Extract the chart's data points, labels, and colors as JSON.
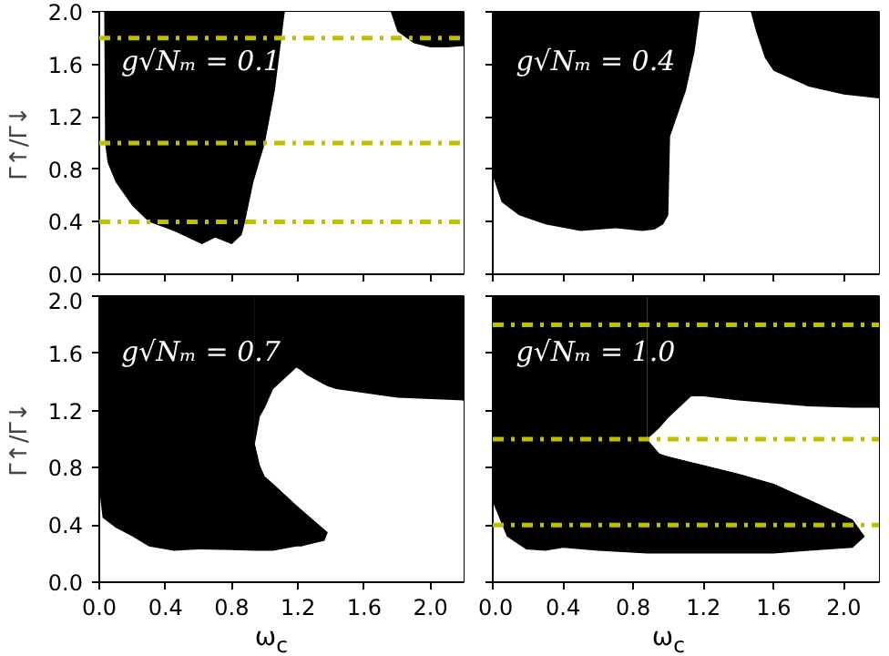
{
  "chart_data": [
    {
      "type": "area",
      "stacked": true,
      "ylabel": "Γ↑/Γ↓",
      "annotations": [
        "g√Nₘ = 0.1"
      ],
      "tick_labels": "y",
      "xlim": [
        0,
        2.2
      ],
      "ylim": [
        0,
        2.0
      ],
      "xticks": [
        0,
        0.4,
        0.8,
        1.2,
        1.6,
        2.0
      ],
      "yticks": [
        {
          "value": 0,
          "label": "0.0"
        },
        {
          "value": 0.4,
          "label": "0.4"
        },
        {
          "value": 0.8,
          "label": "0.8"
        },
        {
          "value": 1.2,
          "label": "1.2"
        },
        {
          "value": 1.6,
          "label": "1.6"
        },
        {
          "value": 2.0,
          "label": "2.0"
        }
      ],
      "ref_lines": [
        {
          "axis": "y",
          "value": 0.4,
          "color": "#bfbf00",
          "line_style": "dashdot"
        },
        {
          "axis": "y",
          "value": 1.0,
          "color": "#bfbf00",
          "line_style": "dashdot"
        },
        {
          "axis": "y",
          "value": 1.8,
          "color": "#bfbf00",
          "line_style": "dashdot"
        }
      ],
      "x": [
        0,
        0.03,
        0.035,
        0.05,
        0.1,
        0.2,
        0.3,
        0.45,
        0.55,
        0.62,
        0.7,
        0.8,
        0.86,
        0.88,
        0.93,
        1.0,
        1.06,
        1.12,
        1.76,
        1.8,
        1.9,
        2.0,
        2.1,
        2.2
      ],
      "series": [
        {
          "color": "#ffffff",
          "values": [
            2.0,
            2.0,
            1.0,
            0.85,
            0.7,
            0.52,
            0.4,
            0.33,
            0.27,
            0.23,
            0.28,
            0.23,
            0.3,
            0.4,
            0.7,
            1.0,
            1.4,
            2.0,
            2.0,
            1.85,
            1.76,
            1.73,
            1.73,
            1.74
          ]
        },
        {
          "color": "#000000",
          "values": [
            0,
            0,
            1.0,
            1.15,
            1.3,
            1.48,
            1.6,
            1.67,
            1.73,
            1.77,
            1.72,
            1.77,
            1.7,
            1.6,
            1.3,
            1.0,
            0.6,
            0,
            0,
            0.15,
            0.24,
            0.27,
            0.27,
            0.26
          ]
        }
      ]
    },
    {
      "type": "area",
      "stacked": true,
      "annotations": [
        "g√Nₘ = 0.4"
      ],
      "tick_labels": false,
      "xlim": [
        0,
        2.2
      ],
      "ylim": [
        0,
        2.0
      ],
      "xticks": [
        0,
        0.4,
        0.8,
        1.2,
        1.6,
        2.0
      ],
      "yticks": [
        0,
        0.4,
        0.8,
        1.2,
        1.6,
        2.0
      ],
      "x": [
        0,
        0.05,
        0.15,
        0.3,
        0.5,
        0.6,
        0.7,
        0.85,
        0.92,
        0.97,
        1.0,
        1.01,
        1.1,
        1.15,
        1.18,
        1.47,
        1.5,
        1.55,
        1.6,
        1.8,
        2.0,
        2.2
      ],
      "series": [
        {
          "color": "#ffffff",
          "values": [
            0.75,
            0.55,
            0.45,
            0.38,
            0.33,
            0.34,
            0.35,
            0.33,
            0.34,
            0.38,
            0.45,
            1.05,
            1.4,
            1.7,
            2.0,
            2.0,
            1.85,
            1.65,
            1.55,
            1.43,
            1.37,
            1.34
          ]
        },
        {
          "color": "#000000",
          "values": [
            1.25,
            1.45,
            1.55,
            1.62,
            1.67,
            1.66,
            1.65,
            1.67,
            1.66,
            1.62,
            1.55,
            0.95,
            0.6,
            0.3,
            0,
            0,
            0.15,
            0.35,
            0.45,
            0.57,
            0.63,
            0.66
          ]
        }
      ]
    },
    {
      "type": "area",
      "stacked": true,
      "ylabel": "Γ↑/Γ↓",
      "xlabel": "ω$_{c}$",
      "annotations": [
        "g√Nₘ = 0.7"
      ],
      "xlim": [
        0,
        2.2
      ],
      "ylim": [
        0,
        2.0
      ],
      "xticks": [
        {
          "value": 0,
          "label": "0.0"
        },
        {
          "value": 0.4,
          "label": "0.4"
        },
        {
          "value": 0.8,
          "label": "0.8"
        },
        {
          "value": 1.2,
          "label": "1.2"
        },
        {
          "value": 1.6,
          "label": "1.6"
        },
        {
          "value": 2.0,
          "label": "2.0"
        }
      ],
      "yticks": [
        {
          "value": 0,
          "label": "0.0"
        },
        {
          "value": 0.4,
          "label": "0.4"
        },
        {
          "value": 0.8,
          "label": "0.8"
        },
        {
          "value": 1.2,
          "label": "1.2"
        },
        {
          "value": 1.6,
          "label": "1.6"
        },
        {
          "value": 2.0,
          "label": "2.0"
        }
      ],
      "x": [
        0,
        0.02,
        0.1,
        0.2,
        0.3,
        0.45,
        0.6,
        0.94,
        0.94,
        0.97,
        1.0,
        1.05,
        1.19,
        1.22,
        1.25,
        1.36,
        1.38,
        1.43,
        1.8,
        2.2
      ],
      "series": [
        {
          "color": "#ffffff",
          "values": [
            0.65,
            0.45,
            0.38,
            0.32,
            0.25,
            0.22,
            0.23,
            0.22,
            0.22,
            0.22,
            0.22,
            0.22,
            0.25,
            0.25,
            0.26,
            0.29,
            0.35,
            0.35,
            0.35,
            0.35
          ]
        },
        {
          "color": "#000000",
          "values": [
            1.35,
            1.55,
            1.62,
            1.68,
            1.75,
            1.78,
            1.77,
            1.78,
            0.75,
            0.6,
            0.52,
            0.47,
            0.29,
            0.26,
            0.22,
            0.08,
            0,
            0,
            0,
            0
          ]
        },
        {
          "color": "#ffffff",
          "values": [
            0,
            0,
            0,
            0,
            0,
            0,
            0,
            0,
            0,
            0.34,
            0.48,
            0.66,
            0.96,
            0.97,
            0.97,
            1.01,
            1.02,
            1.0,
            0.94,
            0.92
          ]
        },
        {
          "color": "#000000",
          "values": [
            0,
            0,
            0,
            0,
            0,
            0,
            0,
            0,
            1.03,
            0.84,
            0.78,
            0.65,
            0.5,
            0.52,
            0.55,
            0.62,
            0.63,
            0.65,
            0.71,
            0.73
          ]
        }
      ]
    },
    {
      "type": "area",
      "stacked": true,
      "xlabel": "ω$_{c}$",
      "annotations": [
        "g√Nₘ = 1.0"
      ],
      "tick_labels": "x",
      "xlim": [
        0,
        2.2
      ],
      "ylim": [
        0,
        2.0
      ],
      "xticks": [
        {
          "value": 0,
          "label": "0.0"
        },
        {
          "value": 0.4,
          "label": "0.4"
        },
        {
          "value": 0.8,
          "label": "0.8"
        },
        {
          "value": 1.2,
          "label": "1.2"
        },
        {
          "value": 1.6,
          "label": "1.6"
        },
        {
          "value": 2.0,
          "label": "2.0"
        }
      ],
      "yticks": [
        0,
        0.4,
        0.8,
        1.2,
        1.6,
        2.0
      ],
      "ref_lines": [
        {
          "axis": "y",
          "value": 0.4,
          "color": "#bfbf00",
          "line_style": "dashdot"
        },
        {
          "axis": "y",
          "value": 1.0,
          "color": "#bfbf00",
          "line_style": "dashdot"
        },
        {
          "axis": "y",
          "value": 1.8,
          "color": "#bfbf00",
          "line_style": "dashdot"
        }
      ],
      "x": [
        0,
        0.08,
        0.19,
        0.3,
        0.4,
        0.6,
        0.88,
        0.88,
        0.95,
        1.0,
        1.13,
        1.2,
        1.4,
        1.6,
        1.8,
        2.05,
        2.12,
        2.2
      ],
      "series": [
        {
          "color": "#ffffff",
          "values": [
            0.56,
            0.32,
            0.23,
            0.22,
            0.24,
            0.22,
            0.2,
            0.2,
            0.2,
            0.2,
            0.2,
            0.2,
            0.2,
            0.2,
            0.22,
            0.24,
            0.32,
            0.32
          ]
        },
        {
          "color": "#000000",
          "values": [
            1.44,
            1.68,
            1.77,
            1.78,
            1.76,
            1.78,
            1.8,
            0.8,
            0.7,
            0.68,
            0.64,
            0.62,
            0.56,
            0.49,
            0.36,
            0.2,
            0,
            0
          ]
        },
        {
          "color": "#ffffff",
          "values": [
            0,
            0,
            0,
            0,
            0,
            0,
            0,
            0,
            0.18,
            0.27,
            0.46,
            0.48,
            0.51,
            0.56,
            0.65,
            0.78,
            0.9,
            0.9
          ]
        },
        {
          "color": "#000000",
          "values": [
            0,
            0,
            0,
            0,
            0,
            0,
            0,
            1.0,
            0.92,
            0.85,
            0.7,
            0.7,
            0.73,
            0.75,
            0.77,
            0.78,
            0.78,
            0.78
          ]
        }
      ]
    }
  ]
}
